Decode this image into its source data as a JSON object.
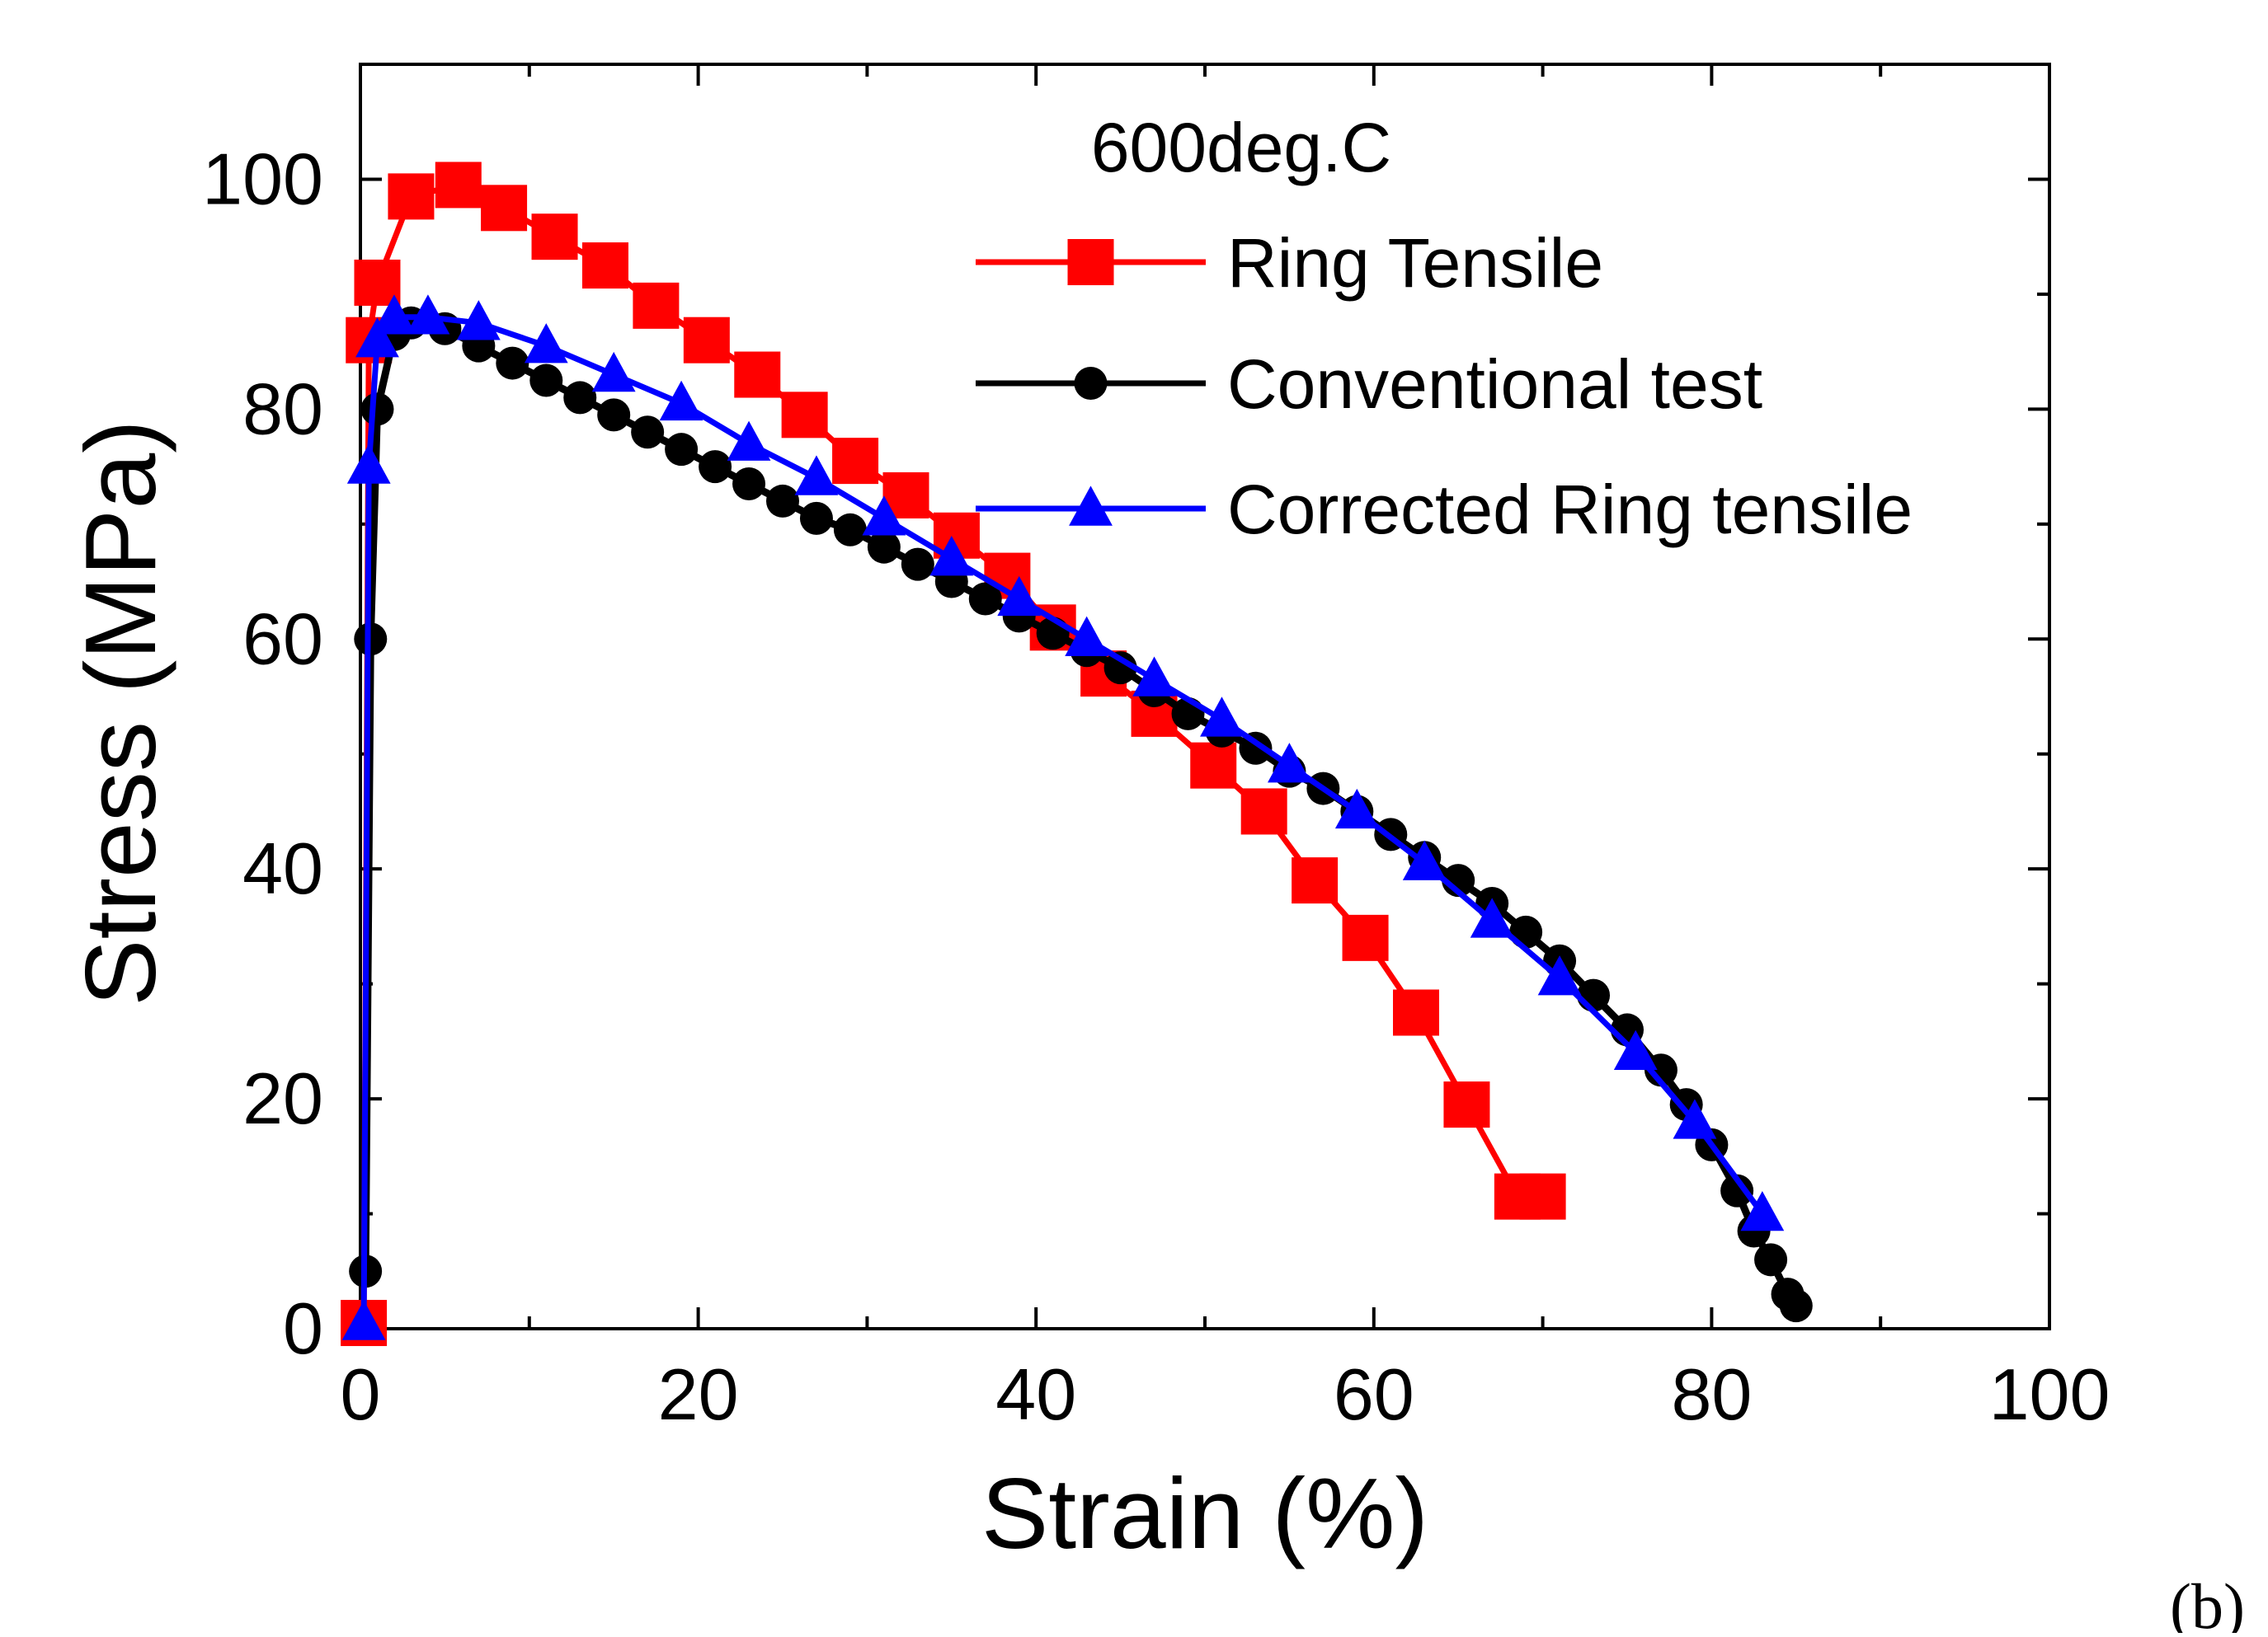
{
  "chart_data": {
    "type": "line",
    "title": "",
    "annotation": "600deg.C",
    "panel_label": "(b)",
    "xlabel": "Strain (%)",
    "ylabel": "Stress (MPa)",
    "xlim": [
      0,
      100
    ],
    "ylim": [
      0,
      110
    ],
    "xticks": [
      0,
      20,
      40,
      60,
      80,
      100
    ],
    "yticks": [
      0,
      20,
      40,
      60,
      80,
      100
    ],
    "grid": false,
    "legend_position": "top-right",
    "series": [
      {
        "name": "Ring Tensile",
        "color": "#ff0000",
        "marker": "square",
        "x": [
          0.2,
          0.5,
          1.0,
          3.0,
          5.8,
          8.5,
          11.5,
          14.5,
          17.5,
          20.5,
          23.5,
          26.3,
          29.3,
          32.3,
          35.3,
          38.3,
          41.0,
          44.0,
          47.0,
          50.5,
          53.5,
          56.5,
          59.5,
          62.5,
          65.5,
          68.5,
          70.0
        ],
        "y": [
          0.5,
          86,
          91,
          98.5,
          99.5,
          97.5,
          95,
          92.5,
          89,
          86,
          83,
          79.5,
          75.5,
          72.5,
          69,
          65.5,
          61,
          57,
          53.5,
          49,
          45,
          39,
          34,
          27.5,
          19.5,
          11.5,
          11.5
        ]
      },
      {
        "name": "Conventional test",
        "color": "#000000",
        "marker": "circle",
        "x": [
          0.3,
          0.6,
          1.0,
          2.0,
          3.0,
          5.0,
          7.0,
          9.0,
          11.0,
          13.0,
          15.0,
          17.0,
          19.0,
          21.0,
          23.0,
          25.0,
          27.0,
          29.0,
          31.0,
          33.0,
          35.0,
          37.0,
          39.0,
          41.0,
          43.0,
          45.0,
          47.0,
          49.0,
          51.0,
          53.0,
          55.0,
          57.0,
          59.0,
          61.0,
          63.0,
          65.0,
          67.0,
          69.0,
          71.0,
          73.0,
          75.0,
          77.0,
          78.5,
          80.0,
          81.5,
          82.5,
          83.5,
          84.5,
          85.0
        ],
        "y": [
          5,
          60,
          80,
          86.5,
          87.5,
          87,
          85.5,
          84,
          82.5,
          81,
          79.5,
          78,
          76.5,
          75,
          73.5,
          72,
          70.5,
          69.5,
          68,
          66.5,
          65,
          63.5,
          62,
          60.5,
          59,
          57.5,
          55.5,
          53.5,
          52,
          50.5,
          48.5,
          47,
          45,
          43,
          41,
          39,
          37,
          34.5,
          32,
          29,
          26,
          22.5,
          19.5,
          16,
          12,
          8.5,
          6,
          3,
          2
        ]
      },
      {
        "name": "Corrected Ring tensile",
        "color": "#0000ff",
        "marker": "triangle",
        "x": [
          0.2,
          0.5,
          1.0,
          2.0,
          4.0,
          7.0,
          11.0,
          15.0,
          19.0,
          23.0,
          27.0,
          31.0,
          35.0,
          39.0,
          43.0,
          47.0,
          51.0,
          55.0,
          59.0,
          63.0,
          67.0,
          71.0,
          75.5,
          79.0,
          83.0
        ],
        "y": [
          0.5,
          75,
          86,
          88,
          88,
          87.5,
          85.5,
          83,
          80.5,
          77,
          74,
          70.5,
          67,
          63.5,
          60,
          56.5,
          53,
          49,
          45,
          40.5,
          35.5,
          30.5,
          24,
          18,
          10
        ]
      }
    ]
  }
}
